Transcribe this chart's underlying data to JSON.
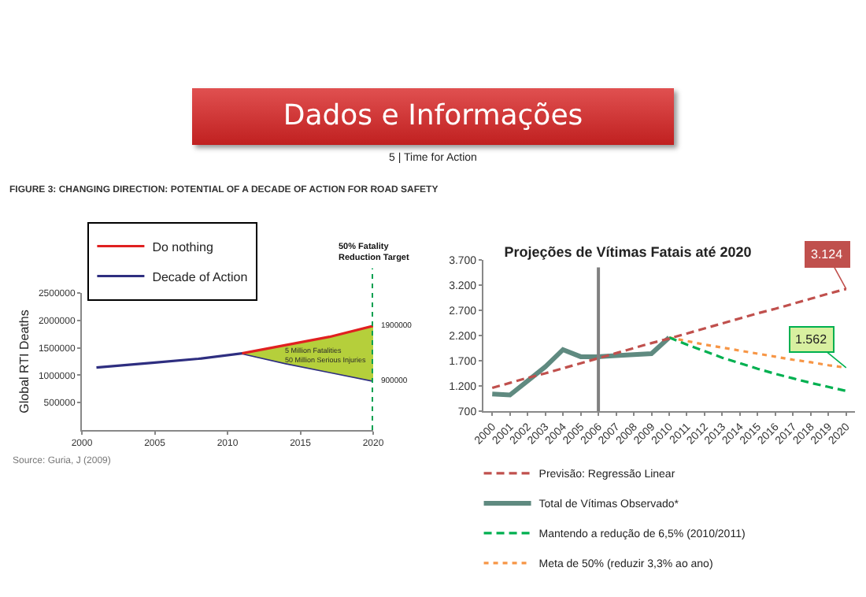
{
  "chart_data": [
    {
      "type": "line",
      "title": "FIGURE 3: CHANGING DIRECTION: POTENTIAL OF A DECADE OF ACTION FOR ROAD SAFETY",
      "ylabel": "Global RTI Deaths",
      "annotations": [
        "Dados e Informações",
        "5  |  Time for Action",
        "5 Million Fatalities\n50 Million Serious Injuries",
        {
          "text": "1900000",
          "x": 2020,
          "y": 1900000
        },
        {
          "text": "900000",
          "x": 2020,
          "y": 900000
        },
        "Source: Guria, J (2009)"
      ],
      "xlim": [
        2000,
        2020
      ],
      "xticks": [
        2000,
        2005,
        2010,
        2015,
        2020
      ],
      "ylim": [
        0,
        2500000
      ],
      "yticks": [
        500000,
        1000000,
        1500000,
        2000000,
        2500000
      ],
      "legend": "top left",
      "grid": false,
      "ref_lines": [
        {
          "axis": "x",
          "value": 2020,
          "label": "50% Fatality\nReduction Target",
          "color": "#00a050",
          "line_style": "dotted"
        }
      ],
      "series": [
        {
          "name": "Do nothing",
          "color": "#e02020",
          "x": [
            2011,
            2014,
            2017,
            2020
          ],
          "values": [
            1400000,
            1550000,
            1700000,
            1900000
          ],
          "lower": [
            1400000,
            1220000,
            1060000,
            900000
          ],
          "upper": [
            1400000,
            1550000,
            1700000,
            1900000
          ]
        },
        {
          "name": "Decade of Action",
          "color": "#2e2e80",
          "x": [
            2001,
            2005,
            2008,
            2011,
            2014,
            2017,
            2020
          ],
          "values": [
            1140000,
            1230000,
            1300000,
            1400000,
            1220000,
            1060000,
            900000
          ]
        }
      ]
    },
    {
      "type": "line",
      "title": "Projeções de Vítimas Fatais até 2020",
      "categories": [
        "2000",
        "2001",
        "2002",
        "2003",
        "2004",
        "2005",
        "2006",
        "2007",
        "2008",
        "2009",
        "2010",
        "2011",
        "2012",
        "2013",
        "2014",
        "2015",
        "2016",
        "2017",
        "2018",
        "2019",
        "2020"
      ],
      "ylim": [
        700,
        3700
      ],
      "yticks": [
        {
          "value": 700,
          "label": "700"
        },
        {
          "value": 1200,
          "label": "1.200"
        },
        {
          "value": 1700,
          "label": "1.700"
        },
        {
          "value": 2200,
          "label": "2.200"
        },
        {
          "value": 2700,
          "label": "2.700"
        },
        {
          "value": 3200,
          "label": "3.200"
        },
        {
          "value": 3700,
          "label": "3.700"
        }
      ],
      "legend": "bottom",
      "grid": false,
      "annotations": [
        {
          "text": "3.124",
          "x": "2020",
          "y": 3124
        },
        {
          "text": "1.562",
          "x": "2020",
          "y": 1562
        }
      ],
      "ref_lines": [
        {
          "axis": "x",
          "value": "2006",
          "color": "#808080",
          "line_style": "solid"
        }
      ],
      "series": [
        {
          "name": "Previsão: Regressão Linear",
          "color": "#c0504d",
          "line_style": "dashed",
          "values": [
            1160,
            1260,
            1360,
            1450,
            1550,
            1650,
            1750,
            1850,
            1950,
            2050,
            2140,
            2240,
            2340,
            2440,
            2540,
            2640,
            2730,
            2830,
            2930,
            3030,
            3124
          ]
        },
        {
          "name": "Total de Vítimas Observado*",
          "color": "#5f8a80",
          "line_style": "solid",
          "values": [
            1040,
            1020,
            1300,
            1580,
            1920,
            1780,
            1780,
            1800,
            1820,
            1840,
            2160,
            null,
            null,
            null,
            null,
            null,
            null,
            null,
            null,
            null,
            null
          ]
        },
        {
          "name": "Mantendo a redução de 6,5% (2010/2011)",
          "color": "#00b050",
          "line_style": "dashed",
          "values": [
            null,
            null,
            null,
            null,
            null,
            null,
            null,
            null,
            null,
            null,
            2160,
            2020,
            1890,
            1760,
            1650,
            1540,
            1440,
            1350,
            1260,
            1180,
            1100
          ]
        },
        {
          "name": "Meta de 50% (reduzir 3,3% ao ano)",
          "color": "#f79646",
          "line_style": "dotted",
          "values": [
            null,
            null,
            null,
            null,
            null,
            null,
            null,
            null,
            null,
            null,
            2160,
            2090,
            2020,
            1960,
            1900,
            1840,
            1780,
            1720,
            1670,
            1610,
            1562
          ]
        }
      ]
    }
  ]
}
